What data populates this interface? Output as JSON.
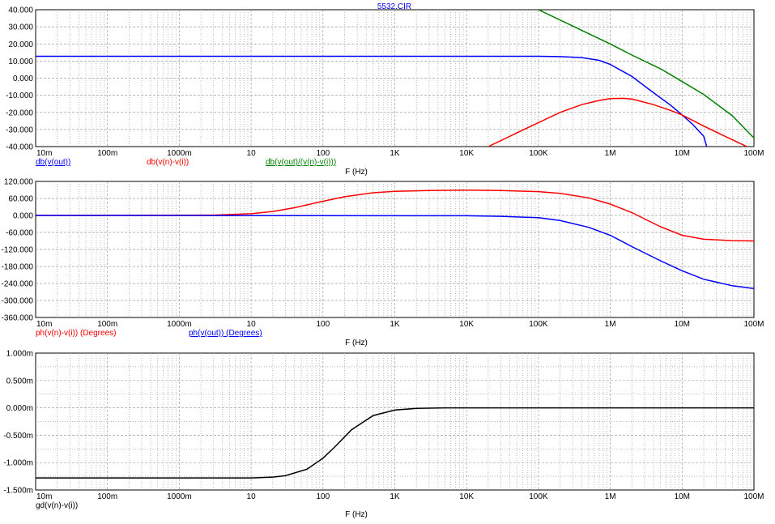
{
  "window_title": "5532.CIR",
  "chart_data": [
    {
      "type": "line",
      "log_x": true,
      "xlim": [
        0.01,
        100000000
      ],
      "ylim": [
        -40,
        40
      ],
      "grid": true,
      "x_ticks": [
        0.01,
        0.1,
        1,
        10,
        100,
        1000,
        10000,
        100000,
        1000000,
        10000000,
        100000000
      ],
      "x_tick_labels": [
        "10m",
        "100m",
        "1000m",
        "10",
        "100",
        "1K",
        "10K",
        "100K",
        "1M",
        "10M",
        "100M"
      ],
      "y_ticks": [
        -40,
        -30,
        -20,
        -10,
        0,
        10,
        20,
        30,
        40
      ],
      "y_tick_labels": [
        "-40.000",
        "-30.000",
        "-20.000",
        "-10.000",
        "0.000",
        "10.000",
        "20.000",
        "30.000",
        "40.000"
      ],
      "xlabel": "F (Hz)",
      "series": [
        {
          "name": "db(v(out))",
          "color": "#0000ff",
          "underline": true,
          "x": [
            0.01,
            100000,
            200000,
            400000,
            700000,
            1000000,
            2000000,
            4000000,
            7000000,
            10000000,
            14000000,
            20000000,
            22000000
          ],
          "y": [
            12.8,
            12.8,
            12.6,
            12.0,
            10.4,
            8.0,
            1.0,
            -8.5,
            -16.0,
            -21.5,
            -27.0,
            -34.0,
            -40.0
          ]
        },
        {
          "name": "db(v(n)-v(i))",
          "color": "#ff0000",
          "underline": false,
          "x": [
            20000,
            50000,
            100000,
            200000,
            400000,
            700000,
            1000000,
            1500000,
            2000000,
            4000000,
            7000000,
            10000000,
            20000000,
            50000000,
            80000000
          ],
          "y": [
            -40.0,
            -32.0,
            -26.0,
            -20.0,
            -15.5,
            -13.0,
            -12.0,
            -11.8,
            -12.2,
            -15.5,
            -19.0,
            -21.5,
            -28.0,
            -36.0,
            -40.0
          ]
        },
        {
          "name": "db(v(out)/(v(n)-v(i)))",
          "color": "#008000",
          "underline": true,
          "x": [
            100000,
            200000,
            500000,
            1000000,
            2000000,
            5000000,
            10000000,
            20000000,
            50000000,
            100000000
          ],
          "y": [
            40.0,
            34.0,
            26.0,
            20.0,
            13.5,
            5.5,
            -2.0,
            -9.5,
            -22.0,
            -35.0
          ]
        }
      ]
    },
    {
      "type": "line",
      "log_x": true,
      "xlim": [
        0.01,
        100000000
      ],
      "ylim": [
        -360,
        120
      ],
      "grid": true,
      "x_ticks": [
        0.01,
        0.1,
        1,
        10,
        100,
        1000,
        10000,
        100000,
        1000000,
        10000000,
        100000000
      ],
      "x_tick_labels": [
        "10m",
        "100m",
        "1000m",
        "10",
        "100",
        "1K",
        "10K",
        "100K",
        "1M",
        "10M",
        "100M"
      ],
      "y_ticks": [
        -360,
        -300,
        -240,
        -180,
        -120,
        -60,
        0,
        60,
        120
      ],
      "y_tick_labels": [
        "-360.000",
        "-300.000",
        "-240.000",
        "-180.000",
        "-120.000",
        "-60.000",
        "0.000",
        "60.000",
        "120.000"
      ],
      "xlabel": "F (Hz)",
      "series": [
        {
          "name": "ph(v(n)-v(i)) (Degrees)",
          "color": "#ff0000",
          "underline": false,
          "x": [
            0.01,
            3,
            10,
            20,
            40,
            100,
            200,
            500,
            1000,
            3000,
            10000,
            30000,
            100000,
            200000,
            500000,
            1000000,
            2000000,
            5000000,
            10000000,
            20000000,
            50000000,
            100000000
          ],
          "y": [
            0,
            1,
            6,
            14,
            27,
            50,
            66,
            80,
            85,
            88,
            89,
            88,
            84,
            78,
            62,
            40,
            10,
            -40,
            -70,
            -84,
            -89,
            -90
          ]
        },
        {
          "name": "ph(v(out)) (Degrees)",
          "color": "#0000ff",
          "underline": true,
          "x": [
            0.01,
            10000,
            30000,
            100000,
            200000,
            500000,
            1000000,
            2000000,
            5000000,
            10000000,
            20000000,
            50000000,
            100000000
          ],
          "y": [
            0,
            -1,
            -3,
            -8,
            -18,
            -42,
            -70,
            -110,
            -160,
            -195,
            -225,
            -248,
            -258
          ]
        }
      ]
    },
    {
      "type": "line",
      "log_x": true,
      "xlim": [
        0.01,
        100000000
      ],
      "ylim": [
        -1.5,
        1
      ],
      "grid": true,
      "x_ticks": [
        0.01,
        0.1,
        1,
        10,
        100,
        1000,
        10000,
        100000,
        1000000,
        10000000,
        100000000
      ],
      "x_tick_labels": [
        "10m",
        "100m",
        "1000m",
        "10",
        "100",
        "1K",
        "10K",
        "100K",
        "1M",
        "10M",
        "100M"
      ],
      "y_ticks": [
        -1.5,
        -1,
        -0.5,
        0,
        0.5,
        1
      ],
      "y_tick_labels": [
        "-1.500m",
        "-1.000m",
        "-0.500m",
        "0.000m",
        "0.500m",
        "1.000m"
      ],
      "xlabel": "F (Hz)",
      "series": [
        {
          "name": "gd(v(n)-v(i))",
          "color": "#000000",
          "underline": false,
          "x": [
            0.01,
            10,
            20,
            30,
            60,
            100,
            150,
            250,
            500,
            1000,
            2000,
            5000,
            100000000
          ],
          "y": [
            -1.28,
            -1.28,
            -1.265,
            -1.24,
            -1.12,
            -0.92,
            -0.7,
            -0.4,
            -0.14,
            -0.04,
            -0.01,
            0,
            0
          ]
        }
      ]
    }
  ]
}
